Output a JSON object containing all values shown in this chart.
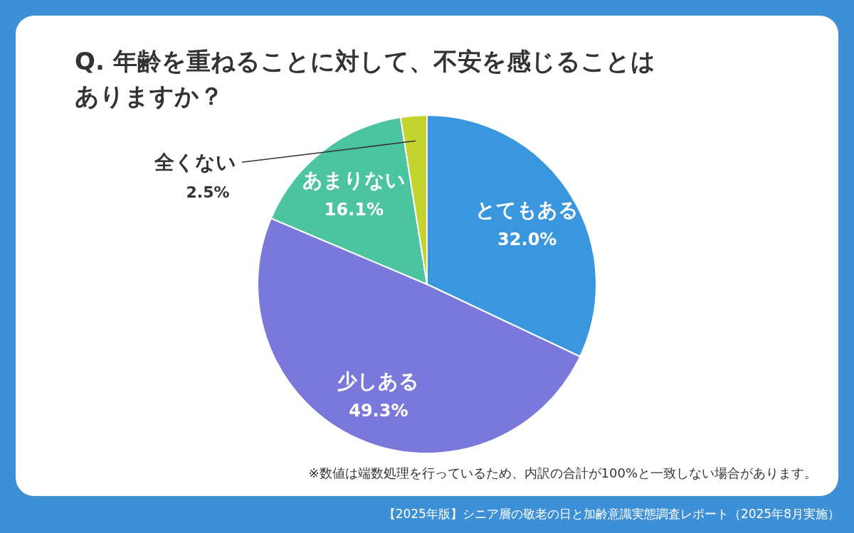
{
  "chart_data": {
    "type": "pie",
    "title": "Q. 年齢を重ねることに対して、不安を感じることはありますか？",
    "categories": [
      "とてもある",
      "少しある",
      "あまりない",
      "全くない"
    ],
    "values": [
      32.0,
      49.3,
      16.1,
      2.5
    ],
    "value_labels": [
      "32.0%",
      "49.3%",
      "16.1%",
      "2.5%"
    ],
    "colors": [
      "#3a97de",
      "#7b78db",
      "#4cc4a0",
      "#c3d42f"
    ],
    "annotations": [
      "※数値は端数処理を行っているため、内訳の合計が100%と一致しない場合があります。",
      "【2025年版】シニア層の敬老の日と加齢意識実態調査レポート（2025年8月実施）"
    ]
  }
}
